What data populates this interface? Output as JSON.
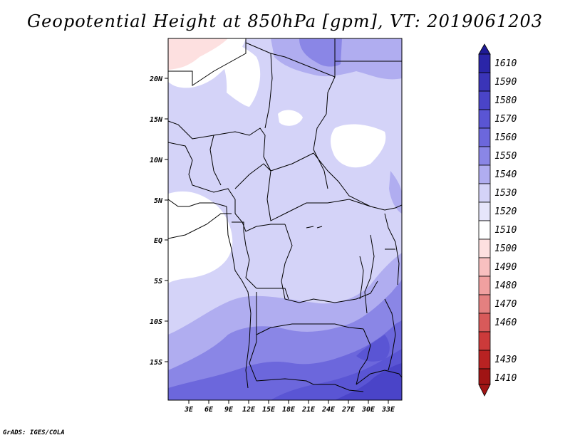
{
  "title": "Geopotential Height at 850hPa [gpm], VT: 2019061203",
  "credit": "GrADS: IGES/COLA",
  "map": {
    "lat_labels": [
      "20N",
      "15N",
      "10N",
      "5N",
      "EQ",
      "5S",
      "10S",
      "15S"
    ],
    "lon_labels": [
      "3E",
      "6E",
      "9E",
      "12E",
      "15E",
      "18E",
      "21E",
      "24E",
      "27E",
      "30E",
      "33E"
    ]
  },
  "colorbar": {
    "levels": [
      "1610",
      "1590",
      "1580",
      "1570",
      "1560",
      "1550",
      "1540",
      "1530",
      "1520",
      "1510",
      "1500",
      "1490",
      "1480",
      "1470",
      "1460",
      "1430",
      "1410"
    ],
    "colors": [
      "#1e1a96",
      "#2a25a8",
      "#3a34b8",
      "#4a44c8",
      "#5a55d4",
      "#6c67dc",
      "#8a86e6",
      "#b0adf0",
      "#d4d3f8",
      "#ffffff",
      "#fde0e0",
      "#f8c0c0",
      "#f0a0a0",
      "#e48080",
      "#d85a5a",
      "#cc3a3a",
      "#b82222",
      "#a01414"
    ]
  }
}
